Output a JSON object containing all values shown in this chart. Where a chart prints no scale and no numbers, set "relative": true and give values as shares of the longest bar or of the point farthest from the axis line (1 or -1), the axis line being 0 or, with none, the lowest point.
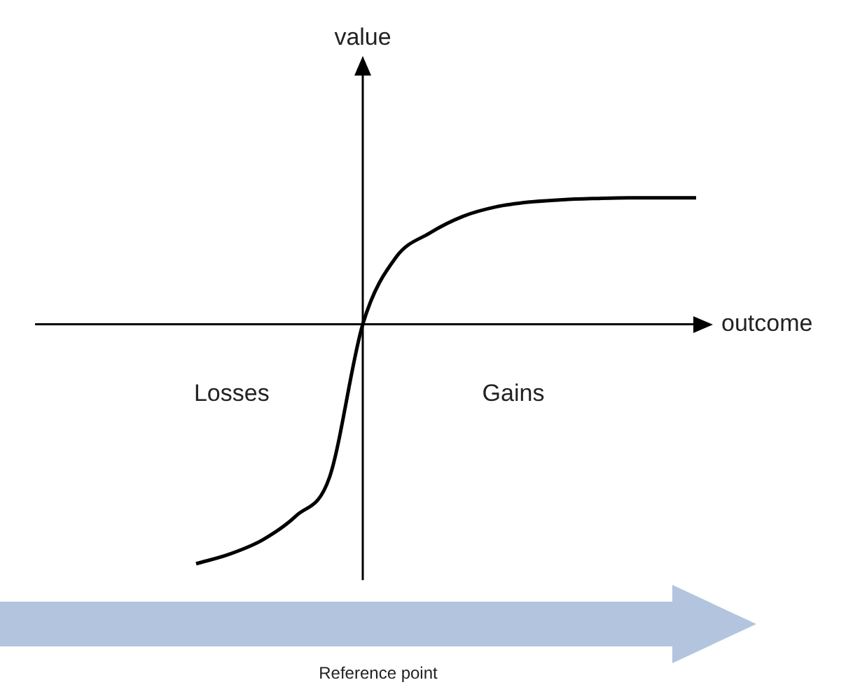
{
  "chart_data": {
    "type": "line",
    "relative": true,
    "xlabel": "outcome",
    "annotations": [
      "Losses",
      "Gains",
      "Reference point",
      "value"
    ],
    "categories": [
      null,
      null,
      null,
      null,
      null,
      null,
      null,
      null,
      null,
      null,
      null,
      null,
      null,
      null,
      null,
      null
    ],
    "series": [
      {
        "color": "#000000",
        "values": [
          -1.0,
          -0.96,
          -0.9,
          -0.8,
          -0.64,
          0,
          0.28,
          0.38,
          0.45,
          0.49,
          0.51,
          0.52,
          0.525,
          0.528,
          0.528,
          0.528
        ]
      }
    ],
    "marker": "none"
  }
}
